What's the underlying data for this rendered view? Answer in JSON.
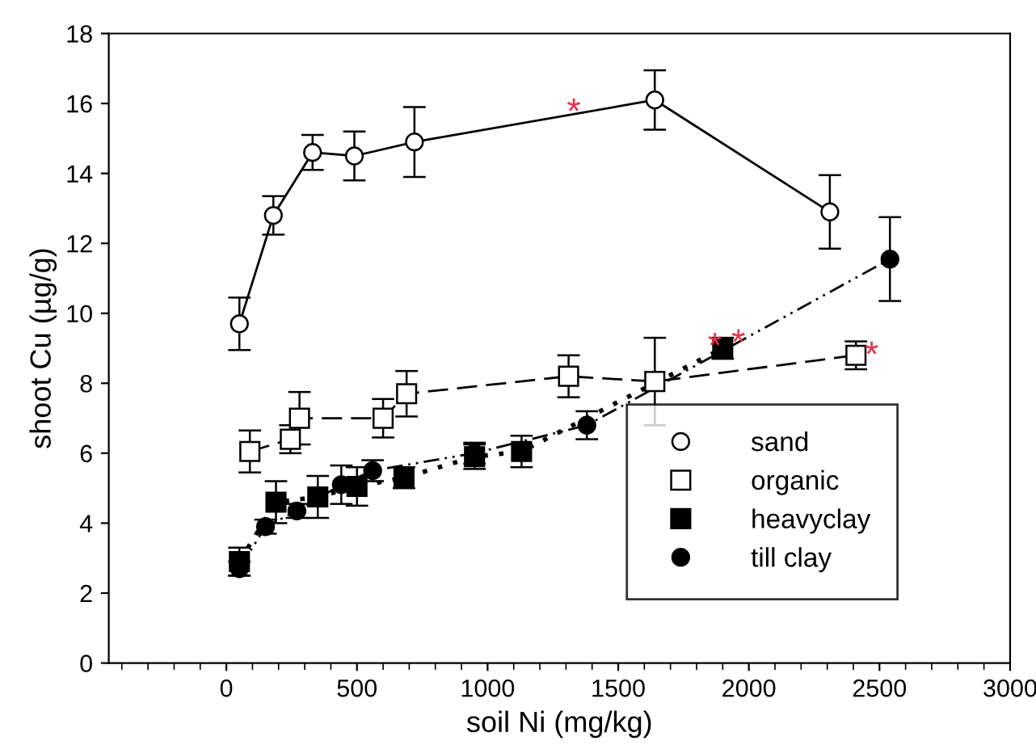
{
  "chart_data": {
    "type": "line",
    "xlabel": "soil Ni (mg/kg)",
    "ylabel": "shoot Cu (µg/g)",
    "xlim": [
      -450,
      3000
    ],
    "xticks": [
      0,
      500,
      1000,
      1500,
      2000,
      2500,
      3000
    ],
    "ylim": [
      0,
      18
    ],
    "yticks": [
      0,
      2,
      4,
      6,
      8,
      10,
      12,
      14,
      16,
      18
    ],
    "grid": false,
    "legend": "bottom right",
    "series": [
      {
        "name": "sand",
        "color": "#000000",
        "marker": "circle",
        "colors": [
          "#ffffff",
          "#ffffff",
          "#ffffff",
          "#ffffff",
          "#ffffff",
          "#ffffff",
          "#ffffff"
        ],
        "line_style": "solid",
        "x": [
          50,
          180,
          330,
          490,
          720,
          1640,
          2310
        ],
        "values": [
          9.7,
          12.8,
          14.6,
          14.5,
          14.9,
          16.1,
          12.9
        ],
        "errors": [
          0.75,
          0.55,
          0.5,
          0.7,
          1.0,
          0.85,
          1.05
        ]
      },
      {
        "name": "organic",
        "color": "#000000",
        "marker": "square",
        "colors": [
          "#ffffff",
          "#ffffff",
          "#ffffff",
          "#ffffff",
          "#ffffff",
          "#ffffff",
          "#ffffff",
          "#ffffff"
        ],
        "line_style": "dashed",
        "x": [
          90,
          245,
          280,
          600,
          690,
          1310,
          1640,
          2410
        ],
        "values": [
          6.05,
          6.4,
          7.0,
          7.0,
          7.7,
          8.2,
          8.05,
          8.8
        ],
        "errors": [
          0.6,
          0.4,
          0.75,
          0.55,
          0.65,
          0.6,
          1.25,
          0.4
        ]
      },
      {
        "name": "heavyclay",
        "color": "#000000",
        "marker": "square",
        "line_style": "dotted",
        "x": [
          50,
          190,
          350,
          500,
          680,
          950,
          1130,
          1900
        ],
        "values": [
          2.9,
          4.6,
          4.75,
          5.05,
          5.3,
          5.9,
          6.05,
          9.0
        ],
        "errors": [
          0.4,
          0.6,
          0.6,
          0.55,
          0.3,
          0.35,
          0.45,
          0.3
        ]
      },
      {
        "name": "till clay",
        "color": "#000000",
        "marker": "circle",
        "line_style": "dashdotdot",
        "x": [
          50,
          150,
          270,
          440,
          560,
          950,
          1380,
          2540
        ],
        "values": [
          2.7,
          3.9,
          4.35,
          5.1,
          5.5,
          6.0,
          6.8,
          11.55
        ],
        "errors": [
          0.2,
          0.2,
          0.2,
          0.55,
          0.3,
          0.3,
          0.4,
          1.2
        ]
      }
    ],
    "annotations": [
      {
        "text": "*",
        "x": 1330,
        "y": 15.7
      },
      {
        "text": "*",
        "x": 1870,
        "y": 9.0
      },
      {
        "text": "*",
        "x": 1960,
        "y": 9.1
      },
      {
        "text": "*",
        "x": 2470,
        "y": 8.75
      }
    ]
  }
}
